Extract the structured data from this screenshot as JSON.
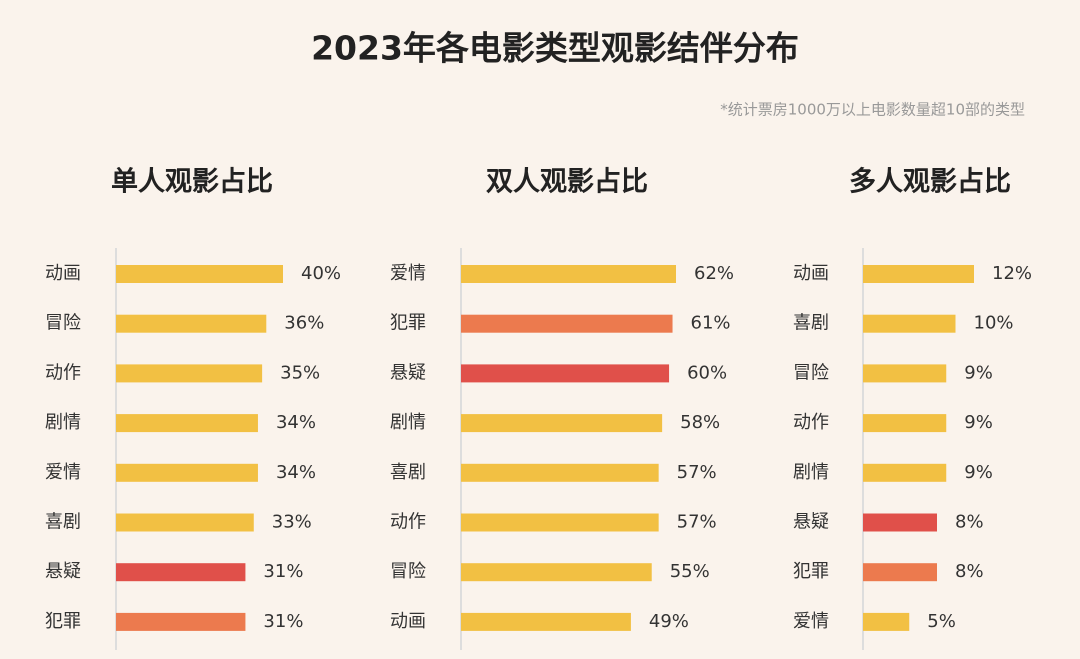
{
  "title": "2023年各电影类型观影结伴分布",
  "note": "*统计票房1000万以上电影数量超10部的类型",
  "chart_data": [
    {
      "type": "bar",
      "title": "单人观影占比",
      "categories": [
        "动画",
        "冒险",
        "动作",
        "剧情",
        "爱情",
        "喜剧",
        "悬疑",
        "犯罪"
      ],
      "values": [
        40,
        36,
        35,
        34,
        34,
        33,
        31,
        31
      ],
      "value_labels": [
        "40%",
        "36%",
        "35%",
        "34%",
        "34%",
        "33%",
        "31%",
        "31%"
      ],
      "colors": [
        "#f2c043",
        "#f2c043",
        "#f2c043",
        "#f2c043",
        "#f2c043",
        "#f2c043",
        "#e0504a",
        "#ec7a4e"
      ]
    },
    {
      "type": "bar",
      "title": "双人观影占比",
      "categories": [
        "爱情",
        "犯罪",
        "悬疑",
        "剧情",
        "喜剧",
        "动作",
        "冒险",
        "动画"
      ],
      "values": [
        62,
        61,
        60,
        58,
        57,
        57,
        55,
        49
      ],
      "value_labels": [
        "62%",
        "61%",
        "60%",
        "58%",
        "57%",
        "57%",
        "55%",
        "49%"
      ],
      "colors": [
        "#f2c043",
        "#ec7a4e",
        "#e0504a",
        "#f2c043",
        "#f2c043",
        "#f2c043",
        "#f2c043",
        "#f2c043"
      ]
    },
    {
      "type": "bar",
      "title": "多人观影占比",
      "categories": [
        "动画",
        "喜剧",
        "冒险",
        "动作",
        "剧情",
        "悬疑",
        "犯罪",
        "爱情"
      ],
      "values": [
        12,
        10,
        9,
        9,
        9,
        8,
        8,
        5
      ],
      "value_labels": [
        "12%",
        "10%",
        "9%",
        "9%",
        "9%",
        "8%",
        "8%",
        "5%"
      ],
      "colors": [
        "#f2c043",
        "#f2c043",
        "#f2c043",
        "#f2c043",
        "#f2c043",
        "#e0504a",
        "#ec7a4e",
        "#f2c043"
      ]
    }
  ]
}
